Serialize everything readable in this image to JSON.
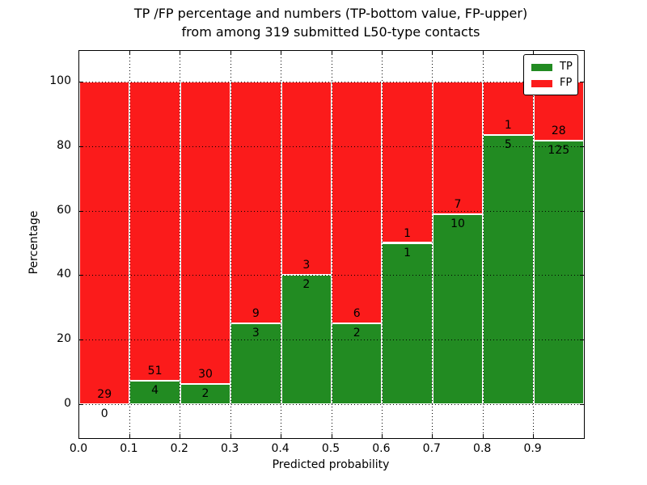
{
  "title": {
    "line1": "TP /FP percentage and numbers (TP-bottom value, FP-upper)",
    "line2": "from among 319 submitted L50-type contacts"
  },
  "axes": {
    "xlabel": "Predicted probability",
    "ylabel": "Percentage",
    "x_tick_labels": [
      "0.0",
      "0.1",
      "0.2",
      "0.3",
      "0.4",
      "0.5",
      "0.6",
      "0.7",
      "0.8",
      "0.9"
    ],
    "y_tick_labels": [
      "0",
      "20",
      "40",
      "60",
      "80",
      "100"
    ]
  },
  "legend": {
    "items": [
      {
        "label": "TP",
        "color": "#228b22"
      },
      {
        "label": "FP",
        "color": "#fb1b1b"
      }
    ]
  },
  "colors": {
    "tp_green": "#228b22",
    "fp_red": "#fb1b1b",
    "grid": "#000000",
    "background": "#ffffff"
  },
  "chart_data": {
    "type": "bar",
    "subtype": "stacked-percentage",
    "title": "TP /FP percentage and numbers (TP-bottom value, FP-upper) from among 319 submitted L50-type contacts",
    "xlabel": "Predicted probability",
    "ylabel": "Percentage",
    "total_contacts": 319,
    "bin_edges": [
      0.0,
      0.1,
      0.2,
      0.3,
      0.4,
      0.5,
      0.6,
      0.7,
      0.8,
      0.9,
      1.0
    ],
    "x_ticks": [
      0.0,
      0.1,
      0.2,
      0.3,
      0.4,
      0.5,
      0.6,
      0.7,
      0.8,
      0.9
    ],
    "y_ticks": [
      0,
      20,
      40,
      60,
      80,
      100
    ],
    "xlim": [
      0.0,
      1.0
    ],
    "ylim": [
      -10.5,
      109.5
    ],
    "grid": "dotted",
    "legend_position": "upper right",
    "series": [
      {
        "name": "TP",
        "color": "#228b22",
        "counts": [
          0,
          4,
          2,
          3,
          2,
          2,
          1,
          10,
          5,
          125
        ]
      },
      {
        "name": "FP",
        "color": "#fb1b1b",
        "counts": [
          29,
          51,
          30,
          9,
          3,
          6,
          1,
          7,
          1,
          28
        ]
      }
    ],
    "tp_percent": [
      0.0,
      7.27,
      6.25,
      25.0,
      40.0,
      25.0,
      50.0,
      58.82,
      83.33,
      81.7
    ],
    "fp_percent": [
      100.0,
      92.73,
      93.75,
      75.0,
      60.0,
      75.0,
      50.0,
      41.18,
      16.67,
      18.3
    ]
  }
}
